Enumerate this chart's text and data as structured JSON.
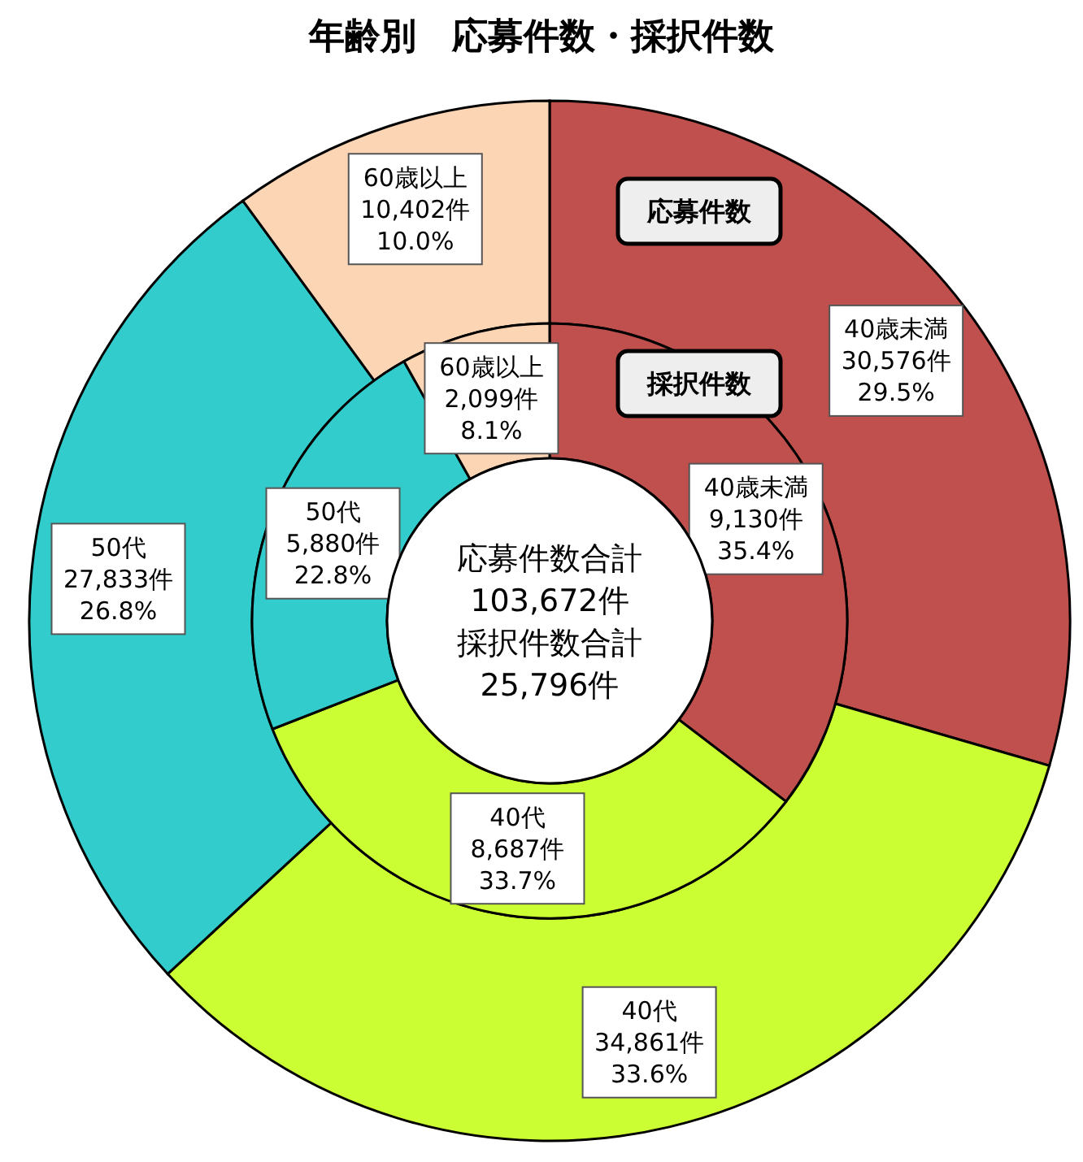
{
  "chart_data": {
    "type": "donut",
    "title": "年齢別　応募件数・採択件数",
    "categories": [
      "40歳未満",
      "40代",
      "50代",
      "60歳以上"
    ],
    "colors": [
      "#c0504d",
      "#ccff33",
      "#33cccc",
      "#fcd5b5"
    ],
    "series": [
      {
        "name": "応募件数",
        "values": [
          30576,
          34861,
          27833,
          10402
        ],
        "value_labels": [
          "30,576件\n29.5%",
          "34,861件\n33.6%",
          "27,833件\n26.8%",
          "10,402件\n10.0%"
        ]
      },
      {
        "name": "採択件数",
        "values": [
          9130,
          8687,
          5880,
          2099
        ],
        "value_labels": [
          "9,130件\n35.4%",
          "8,687件\n33.7%",
          "5,880件\n22.8%",
          "2,099件\n8.1%"
        ]
      }
    ],
    "annotations": [
      "応募件数合計\n103,672件",
      "採択件数合計\n25,796件"
    ]
  }
}
